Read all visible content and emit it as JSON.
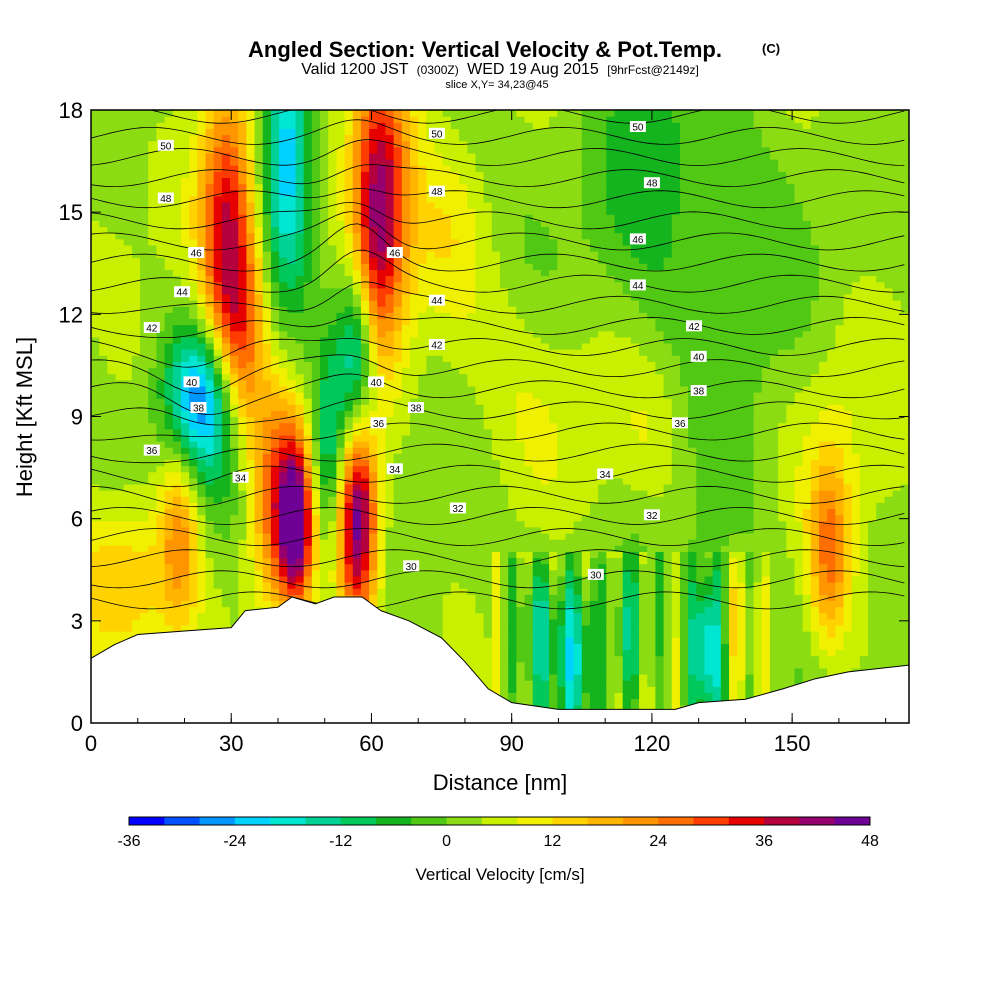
{
  "chart_data": {
    "type": "heatmap",
    "title": "Angled Section: Vertical Velocity & Pot.Temp.",
    "title_unit": "(C)",
    "subtitle_main": "Valid 1200 JST",
    "subtitle_z": "(0300Z)",
    "subtitle_date": "WED 19 Aug 2015",
    "subtitle_fcst": "[9hrFcst@2149z]",
    "slice_label": "slice X,Y= 34,23@45",
    "xlabel": "Distance [nm]",
    "ylabel": "Height [Kft MSL]",
    "xlim": [
      0,
      175
    ],
    "ylim": [
      0,
      18
    ],
    "xticks": [
      0,
      30,
      60,
      90,
      120,
      150
    ],
    "yticks": [
      0,
      3,
      6,
      9,
      12,
      15,
      18
    ],
    "grid": false,
    "colorbar": {
      "label": "Vertical Velocity [cm/s]",
      "min": -36,
      "max": 48,
      "step": 4,
      "ticks": [
        -36,
        -24,
        -12,
        0,
        12,
        24,
        36,
        48
      ],
      "colors": [
        "#0000ff",
        "#0050ff",
        "#0096ff",
        "#00d2ff",
        "#00e6d2",
        "#00d296",
        "#00c85a",
        "#14b41e",
        "#50c814",
        "#8cdc14",
        "#c8f000",
        "#f0f000",
        "#ffd200",
        "#ffb400",
        "#ff9600",
        "#ff6e00",
        "#ff3c00",
        "#e60000",
        "#b4003c",
        "#96006e",
        "#6e0096"
      ]
    },
    "terrain_kft": [
      [
        0,
        1.9
      ],
      [
        5,
        2.3
      ],
      [
        10,
        2.6
      ],
      [
        20,
        2.7
      ],
      [
        30,
        2.8
      ],
      [
        33,
        3.3
      ],
      [
        40,
        3.4
      ],
      [
        43,
        3.7
      ],
      [
        48,
        3.5
      ],
      [
        52,
        3.7
      ],
      [
        58,
        3.7
      ],
      [
        62,
        3.3
      ],
      [
        68,
        3.0
      ],
      [
        75,
        2.5
      ],
      [
        80,
        1.8
      ],
      [
        85,
        1.0
      ],
      [
        90,
        0.6
      ],
      [
        100,
        0.4
      ],
      [
        110,
        0.4
      ],
      [
        125,
        0.4
      ],
      [
        130,
        0.6
      ],
      [
        140,
        0.7
      ],
      [
        148,
        1.0
      ],
      [
        155,
        1.3
      ],
      [
        162,
        1.5
      ],
      [
        175,
        1.7
      ]
    ],
    "updrafts": [
      {
        "x": 29,
        "z": 14.5,
        "sx": 4,
        "sz": 3.2,
        "w": 32
      },
      {
        "x": 33,
        "z": 11,
        "sx": 3.5,
        "sz": 2.5,
        "w": 18
      },
      {
        "x": 40,
        "z": 6.5,
        "sx": 4,
        "sz": 2.3,
        "w": 26
      },
      {
        "x": 44,
        "z": 5.8,
        "sx": 2.5,
        "sz": 1.7,
        "w": 36
      },
      {
        "x": 57,
        "z": 6.2,
        "sx": 3,
        "sz": 2.2,
        "w": 48
      },
      {
        "x": 62,
        "z": 16,
        "sx": 4.5,
        "sz": 2.8,
        "w": 32
      },
      {
        "x": 60,
        "z": 13,
        "sx": 4,
        "sz": 2.5,
        "w": 18
      },
      {
        "x": 19,
        "z": 5.7,
        "sx": 3,
        "sz": 2.0,
        "w": 18
      },
      {
        "x": 7,
        "z": 4.3,
        "sx": 8,
        "sz": 1.6,
        "w": 14
      },
      {
        "x": 158,
        "z": 5,
        "sx": 3,
        "sz": 1.9,
        "w": 20
      },
      {
        "x": 138,
        "z": 3.2,
        "sx": 4,
        "sz": 1.2,
        "w": 8
      },
      {
        "x": 76,
        "z": 14,
        "sx": 6,
        "sz": 2,
        "w": 6
      },
      {
        "x": 100,
        "z": 10,
        "sx": 12,
        "sz": 2,
        "w": 4
      },
      {
        "x": 160,
        "z": 9,
        "sx": 10,
        "sz": 2.5,
        "w": 5
      },
      {
        "x": 120,
        "z": 8.5,
        "sx": 6,
        "sz": 1.5,
        "w": 5
      }
    ],
    "downdrafts": [
      {
        "x": 23,
        "z": 9.6,
        "sx": 5,
        "sz": 1.5,
        "w": -28
      },
      {
        "x": 42,
        "z": 17,
        "sx": 3.5,
        "sz": 2.8,
        "w": -26
      },
      {
        "x": 57,
        "z": 10.8,
        "sx": 3,
        "sz": 2.3,
        "w": -30
      },
      {
        "x": 51,
        "z": 8,
        "sx": 3,
        "sz": 2.2,
        "w": -16
      },
      {
        "x": 104,
        "z": 2.2,
        "sx": 3,
        "sz": 1.8,
        "w": -18
      },
      {
        "x": 132,
        "z": 2.2,
        "sx": 2.5,
        "sz": 1.6,
        "w": -30
      },
      {
        "x": 96,
        "z": 2.8,
        "sx": 3,
        "sz": 1.5,
        "w": -12
      },
      {
        "x": 115,
        "z": 2.5,
        "sx": 3,
        "sz": 1.5,
        "w": -12
      },
      {
        "x": 120,
        "z": 16,
        "sx": 10,
        "sz": 3,
        "w": -10
      },
      {
        "x": 30,
        "z": 8,
        "sx": 6,
        "sz": 2,
        "w": -10
      },
      {
        "x": 140,
        "z": 11,
        "sx": 10,
        "sz": 4,
        "w": -6
      }
    ],
    "isentrope_levels": [
      28,
      29,
      30,
      31,
      32,
      33,
      34,
      35,
      36,
      37,
      38,
      39,
      40,
      41,
      42,
      43,
      44,
      45,
      46,
      47,
      48,
      49,
      50,
      51,
      52
    ],
    "isentrope_labels": [
      {
        "level": 50,
        "x": 16,
        "z": 16.95
      },
      {
        "level": 48,
        "x": 16,
        "z": 15.4
      },
      {
        "level": 46,
        "x": 22.5,
        "z": 13.8
      },
      {
        "level": 44,
        "x": 19.5,
        "z": 12.65
      },
      {
        "level": 42,
        "x": 13,
        "z": 11.6
      },
      {
        "level": 40,
        "x": 21.5,
        "z": 10.0
      },
      {
        "level": 38,
        "x": 23,
        "z": 9.25
      },
      {
        "level": 36,
        "x": 13,
        "z": 8.0
      },
      {
        "level": 34,
        "x": 32,
        "z": 7.2
      },
      {
        "level": 50,
        "x": 74,
        "z": 17.3
      },
      {
        "level": 48,
        "x": 74,
        "z": 15.6
      },
      {
        "level": 46,
        "x": 65,
        "z": 13.8
      },
      {
        "level": 44,
        "x": 74,
        "z": 12.4
      },
      {
        "level": 42,
        "x": 74,
        "z": 11.1
      },
      {
        "level": 40,
        "x": 61,
        "z": 10.0
      },
      {
        "level": 38,
        "x": 69.5,
        "z": 9.25
      },
      {
        "level": 36,
        "x": 61.5,
        "z": 8.8
      },
      {
        "level": 34,
        "x": 65,
        "z": 7.45
      },
      {
        "level": 32,
        "x": 78.5,
        "z": 6.3
      },
      {
        "level": 30,
        "x": 68.5,
        "z": 4.6
      },
      {
        "level": 50,
        "x": 117,
        "z": 17.5
      },
      {
        "level": 48,
        "x": 120,
        "z": 15.85
      },
      {
        "level": 46,
        "x": 117,
        "z": 14.2
      },
      {
        "level": 44,
        "x": 117,
        "z": 12.85
      },
      {
        "level": 42,
        "x": 129,
        "z": 11.65
      },
      {
        "level": 40,
        "x": 130,
        "z": 10.75
      },
      {
        "level": 38,
        "x": 130,
        "z": 9.75
      },
      {
        "level": 36,
        "x": 126,
        "z": 8.8
      },
      {
        "level": 34,
        "x": 110,
        "z": 7.3
      },
      {
        "level": 32,
        "x": 120,
        "z": 6.1
      },
      {
        "level": 30,
        "x": 108,
        "z": 4.35
      }
    ]
  }
}
